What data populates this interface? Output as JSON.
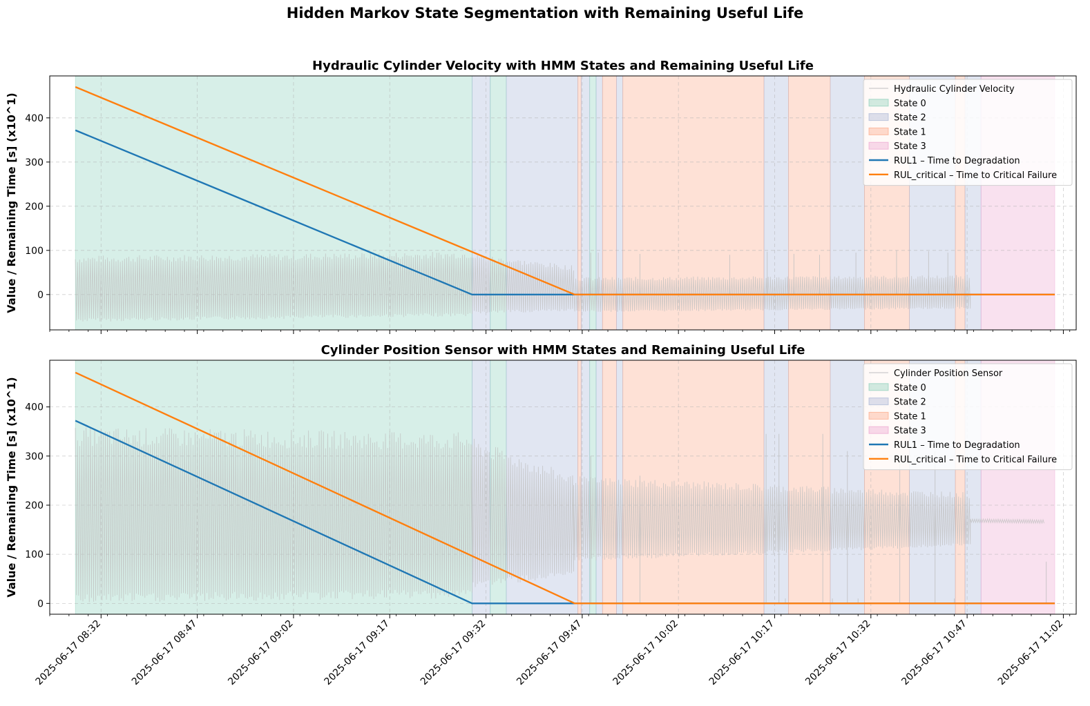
{
  "figure": {
    "suptitle": "Hidden Markov State Segmentation with Remaining Useful Life"
  },
  "colors": {
    "state_0": "#66c2a5",
    "state_2": "#8da0cb",
    "state_1": "#fc8d62",
    "state_3": "#e78ac3",
    "rul1": "#1f77b4",
    "rul_critical": "#ff7f0e",
    "signal": "#bfbfbf"
  },
  "chart_data": [
    {
      "type": "line",
      "title": "Hydraulic Cylinder Velocity with HMM States and Remaining Useful Life",
      "xlabel": "",
      "ylabel": "Value / Remaining Time [s] (x10^1)",
      "xlim": [
        "2025-06-17 08:24",
        "2025-06-17 11:04"
      ],
      "ylim": [
        -80,
        495
      ],
      "yticks": [
        0,
        100,
        200,
        300,
        400
      ],
      "xticks": [
        "2025-06-17 08:32",
        "2025-06-17 08:47",
        "2025-06-17 09:02",
        "2025-06-17 09:17",
        "2025-06-17 09:32",
        "2025-06-17 09:47",
        "2025-06-17 10:02",
        "2025-06-17 10:17",
        "2025-06-17 10:32",
        "2025-06-17 10:47",
        "2025-06-17 11:02"
      ],
      "grid": true,
      "legend_position": "upper right",
      "legend": [
        "Hydraulic Cylinder Velocity",
        "State 0",
        "State 2",
        "State 1",
        "State 3",
        "RUL1 – Time to Degradation",
        "RUL_critical – Time to Critical Failure"
      ],
      "signal": {
        "name": "Hydraulic Cylinder Velocity",
        "segments": [
          {
            "start": "08:28:00",
            "end": "09:30:00",
            "low": -58,
            "high": 80,
            "low2": -45,
            "high2": 90
          },
          {
            "start": "09:30:00",
            "end": "09:45:40",
            "low": -40,
            "high": 85,
            "low2": -35,
            "high2": 60
          },
          {
            "start": "09:45:40",
            "end": "10:47:30",
            "low": -38,
            "high": 35,
            "low2": -30,
            "high2": 40
          },
          {
            "start": "10:47:30",
            "end": "10:59:00",
            "low": 0,
            "high": 0,
            "low2": 0,
            "high2": 0
          }
        ],
        "spikes": [
          [
            "09:44:40",
            5
          ],
          [
            "09:48:20",
            95
          ],
          [
            "09:49:30",
            95
          ],
          [
            "09:56:00",
            92
          ],
          [
            "10:10:00",
            90
          ],
          [
            "10:15:50",
            97
          ],
          [
            "10:20:00",
            92
          ],
          [
            "10:24:00",
            90
          ],
          [
            "10:29:40",
            95
          ],
          [
            "10:36:00",
            100
          ],
          [
            "10:41:00",
            98
          ],
          [
            "10:44:00",
            95
          ]
        ]
      },
      "states": [
        {
          "state": "0",
          "start": "08:28:00",
          "end": "09:29:50"
        },
        {
          "state": "2",
          "start": "09:29:50",
          "end": "09:32:40"
        },
        {
          "state": "0",
          "start": "09:32:40",
          "end": "09:35:10"
        },
        {
          "state": "2",
          "start": "09:35:10",
          "end": "09:46:20"
        },
        {
          "state": "1",
          "start": "09:46:20",
          "end": "09:46:50"
        },
        {
          "state": "2",
          "start": "09:46:50",
          "end": "09:48:10"
        },
        {
          "state": "0",
          "start": "09:48:10",
          "end": "09:49:10"
        },
        {
          "state": "2",
          "start": "09:49:10",
          "end": "09:50:10"
        },
        {
          "state": "1",
          "start": "09:50:10",
          "end": "09:52:20"
        },
        {
          "state": "2",
          "start": "09:52:20",
          "end": "09:53:20"
        },
        {
          "state": "1",
          "start": "09:53:20",
          "end": "10:15:20"
        },
        {
          "state": "2",
          "start": "10:15:20",
          "end": "10:19:10"
        },
        {
          "state": "1",
          "start": "10:19:10",
          "end": "10:25:40"
        },
        {
          "state": "2",
          "start": "10:25:40",
          "end": "10:31:00"
        },
        {
          "state": "1",
          "start": "10:31:00",
          "end": "10:38:00"
        },
        {
          "state": "2",
          "start": "10:38:00",
          "end": "10:45:10"
        },
        {
          "state": "1",
          "start": "10:45:10",
          "end": "10:46:40"
        },
        {
          "state": "2",
          "start": "10:46:40",
          "end": "10:49:10"
        },
        {
          "state": "3",
          "start": "10:49:10",
          "end": "11:00:40"
        }
      ],
      "series": [
        {
          "name": "RUL1 – Time to Degradation",
          "x": [
            "08:28:00",
            "09:29:50",
            "11:00:40"
          ],
          "y": [
            372,
            0,
            0
          ]
        },
        {
          "name": "RUL_critical – Time to Critical Failure",
          "x": [
            "08:28:00",
            "09:45:50",
            "11:00:40"
          ],
          "y": [
            470,
            0,
            0
          ]
        }
      ]
    },
    {
      "type": "line",
      "title": "Cylinder Position Sensor with HMM States and Remaining Useful Life",
      "xlabel": "",
      "ylabel": "Value / Remaining Time [s] (x10^1)",
      "xlim": [
        "2025-06-17 08:24",
        "2025-06-17 11:04"
      ],
      "ylim": [
        -22,
        495
      ],
      "yticks": [
        0,
        100,
        200,
        300,
        400
      ],
      "xticks": [
        "2025-06-17 08:32",
        "2025-06-17 08:47",
        "2025-06-17 09:02",
        "2025-06-17 09:17",
        "2025-06-17 09:32",
        "2025-06-17 09:47",
        "2025-06-17 10:02",
        "2025-06-17 10:17",
        "2025-06-17 10:32",
        "2025-06-17 10:47",
        "2025-06-17 11:02"
      ],
      "grid": true,
      "legend_position": "upper right",
      "legend": [
        "Cylinder Position Sensor",
        "State 0",
        "State 2",
        "State 1",
        "State 3",
        "RUL1 – Time to Degradation",
        "RUL_critical – Time to Critical Failure"
      ],
      "signal": {
        "name": "Cylinder Position Sensor",
        "segments": [
          {
            "start": "08:28:00",
            "end": "09:29:50",
            "low": 10,
            "high": 340,
            "low2": 20,
            "high2": 330
          },
          {
            "start": "09:29:50",
            "end": "09:45:40",
            "low": 40,
            "high": 320,
            "low2": 60,
            "high2": 250
          },
          {
            "start": "09:45:40",
            "end": "10:47:30",
            "low": 90,
            "high": 250,
            "low2": 120,
            "high2": 220
          },
          {
            "start": "10:47:30",
            "end": "10:59:00",
            "low": 165,
            "high": 172,
            "low2": 163,
            "high2": 170
          }
        ],
        "spikes": [
          [
            "09:48:20",
            300
          ],
          [
            "09:56:00",
            260
          ],
          [
            "10:15:40",
            345
          ],
          [
            "10:17:40",
            345
          ],
          [
            "10:18:40",
            10
          ],
          [
            "10:24:30",
            345
          ],
          [
            "10:26:00",
            10
          ],
          [
            "10:28:20",
            310
          ],
          [
            "10:30:00",
            10
          ],
          [
            "10:36:30",
            300
          ],
          [
            "10:42:00",
            310
          ],
          [
            "10:45:00",
            10
          ],
          [
            "10:59:20",
            85
          ]
        ]
      },
      "states": [
        {
          "state": "0",
          "start": "08:28:00",
          "end": "09:29:50"
        },
        {
          "state": "2",
          "start": "09:29:50",
          "end": "09:32:40"
        },
        {
          "state": "0",
          "start": "09:32:40",
          "end": "09:35:10"
        },
        {
          "state": "2",
          "start": "09:35:10",
          "end": "09:46:20"
        },
        {
          "state": "1",
          "start": "09:46:20",
          "end": "09:46:50"
        },
        {
          "state": "2",
          "start": "09:46:50",
          "end": "09:48:10"
        },
        {
          "state": "0",
          "start": "09:48:10",
          "end": "09:49:10"
        },
        {
          "state": "2",
          "start": "09:49:10",
          "end": "09:50:10"
        },
        {
          "state": "1",
          "start": "09:50:10",
          "end": "09:52:20"
        },
        {
          "state": "2",
          "start": "09:52:20",
          "end": "09:53:20"
        },
        {
          "state": "1",
          "start": "09:53:20",
          "end": "10:15:20"
        },
        {
          "state": "2",
          "start": "10:15:20",
          "end": "10:19:10"
        },
        {
          "state": "1",
          "start": "10:19:10",
          "end": "10:25:40"
        },
        {
          "state": "2",
          "start": "10:25:40",
          "end": "10:31:00"
        },
        {
          "state": "1",
          "start": "10:31:00",
          "end": "10:38:00"
        },
        {
          "state": "2",
          "start": "10:38:00",
          "end": "10:45:10"
        },
        {
          "state": "1",
          "start": "10:45:10",
          "end": "10:46:40"
        },
        {
          "state": "2",
          "start": "10:46:40",
          "end": "10:49:10"
        },
        {
          "state": "3",
          "start": "10:49:10",
          "end": "11:00:40"
        }
      ],
      "series": [
        {
          "name": "RUL1 – Time to Degradation",
          "x": [
            "08:28:00",
            "09:29:50",
            "11:00:40"
          ],
          "y": [
            372,
            0,
            0
          ]
        },
        {
          "name": "RUL_critical – Time to Critical Failure",
          "x": [
            "08:28:00",
            "09:45:50",
            "11:00:40"
          ],
          "y": [
            470,
            0,
            0
          ]
        }
      ]
    }
  ]
}
